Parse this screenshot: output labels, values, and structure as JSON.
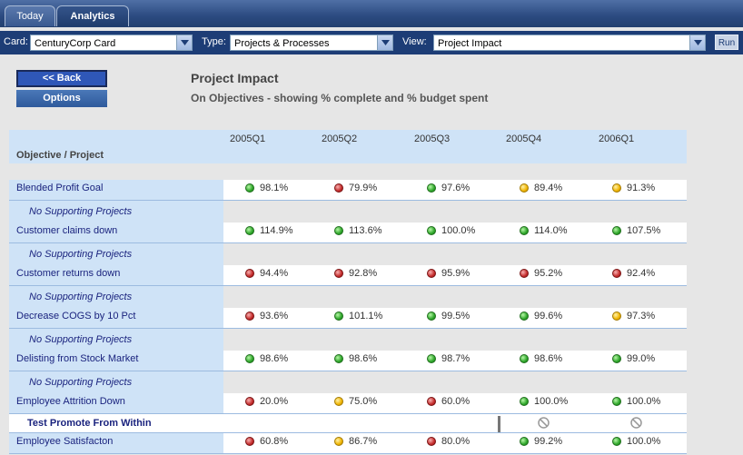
{
  "tabs": [
    {
      "label": "Today"
    },
    {
      "label": "Analytics"
    }
  ],
  "filters": {
    "card_label": "Card:",
    "card_value": "CenturyCorp Card",
    "type_label": "Type:",
    "type_value": "Projects & Processes",
    "view_label": "View:",
    "view_value": "Project Impact",
    "run_label": "Run"
  },
  "buttons": {
    "back": "<< Back",
    "options": "Options"
  },
  "report": {
    "title": "Project Impact",
    "subtitle": "On Objectives - showing % complete and % budget spent"
  },
  "table": {
    "objective_header": "Objective / Project",
    "quarters": [
      "2005Q1",
      "2005Q2",
      "2005Q3",
      "2005Q4",
      "2006Q1"
    ],
    "rows": [
      {
        "name": "Blended Profit Goal",
        "sub": "No Supporting Projects",
        "cells": [
          {
            "v": "98.1%",
            "s": "g"
          },
          {
            "v": "79.9%",
            "s": "r"
          },
          {
            "v": "97.6%",
            "s": "g"
          },
          {
            "v": "89.4%",
            "s": "y"
          },
          {
            "v": "91.3%",
            "s": "y"
          }
        ]
      },
      {
        "name": "Customer claims down",
        "sub": "No Supporting Projects",
        "cells": [
          {
            "v": "114.9%",
            "s": "g"
          },
          {
            "v": "113.6%",
            "s": "g"
          },
          {
            "v": "100.0%",
            "s": "g"
          },
          {
            "v": "114.0%",
            "s": "g"
          },
          {
            "v": "107.5%",
            "s": "g"
          }
        ]
      },
      {
        "name": "Customer returns down",
        "sub": "No Supporting Projects",
        "cells": [
          {
            "v": "94.4%",
            "s": "r"
          },
          {
            "v": "92.8%",
            "s": "r"
          },
          {
            "v": "95.9%",
            "s": "r"
          },
          {
            "v": "95.2%",
            "s": "r"
          },
          {
            "v": "92.4%",
            "s": "r"
          }
        ]
      },
      {
        "name": "Decrease COGS by 10 Pct",
        "sub": "No Supporting Projects",
        "cells": [
          {
            "v": "93.6%",
            "s": "r"
          },
          {
            "v": "101.1%",
            "s": "g"
          },
          {
            "v": "99.5%",
            "s": "g"
          },
          {
            "v": "99.6%",
            "s": "g"
          },
          {
            "v": "97.3%",
            "s": "y"
          }
        ]
      },
      {
        "name": "Delisting from Stock Market",
        "sub": "No Supporting Projects",
        "cells": [
          {
            "v": "98.6%",
            "s": "g"
          },
          {
            "v": "98.6%",
            "s": "g"
          },
          {
            "v": "98.7%",
            "s": "g"
          },
          {
            "v": "98.6%",
            "s": "g"
          },
          {
            "v": "99.0%",
            "s": "g"
          }
        ]
      },
      {
        "name": "Employee Attrition Down",
        "project": "Test Promote From Within",
        "cells": [
          {
            "v": "20.0%",
            "s": "r"
          },
          {
            "v": "75.0%",
            "s": "y"
          },
          {
            "v": "60.0%",
            "s": "r"
          },
          {
            "v": "100.0%",
            "s": "g"
          },
          {
            "v": "100.0%",
            "s": "g"
          }
        ]
      },
      {
        "name": "Employee Satisfacton",
        "cells": [
          {
            "v": "60.8%",
            "s": "r"
          },
          {
            "v": "86.7%",
            "s": "y"
          },
          {
            "v": "80.0%",
            "s": "r"
          },
          {
            "v": "99.2%",
            "s": "g"
          },
          {
            "v": "100.0%",
            "s": "g"
          }
        ]
      }
    ]
  },
  "status_colors": {
    "green": "#2ea62a",
    "red": "#c42b2b",
    "yellow": "#f0b400"
  },
  "icons": {
    "dropdown": "chevron-down-icon",
    "not_applicable": "no-entry-icon"
  }
}
